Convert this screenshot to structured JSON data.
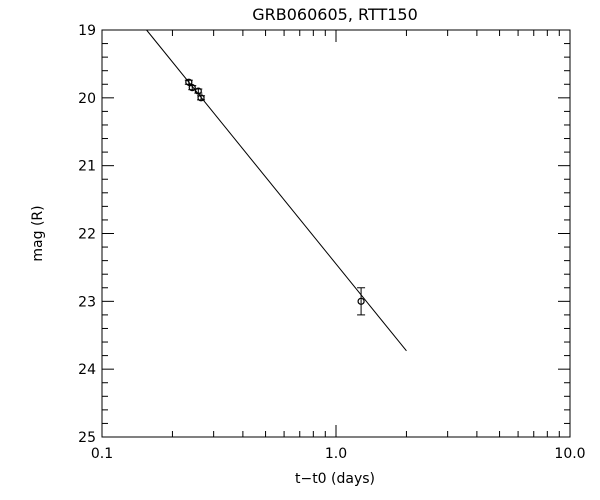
{
  "chart_data": {
    "type": "scatter",
    "title": "GRB060605, RTT150",
    "xlabel": "t−t0 (days)",
    "ylabel": "mag (R)",
    "x_scale": "log",
    "xlim": [
      0.1,
      10.0
    ],
    "ylim": [
      19,
      25
    ],
    "y_inverted": true,
    "grid": false,
    "x_ticks": [
      {
        "value": 0.1,
        "label": "0.1"
      },
      {
        "value": 1.0,
        "label": "1.0"
      },
      {
        "value": 10.0,
        "label": "10.0"
      }
    ],
    "y_ticks": [
      {
        "value": 19,
        "label": "19"
      },
      {
        "value": 20,
        "label": "20"
      },
      {
        "value": 21,
        "label": "21"
      },
      {
        "value": 22,
        "label": "22"
      },
      {
        "value": 23,
        "label": "23"
      },
      {
        "value": 24,
        "label": "24"
      },
      {
        "value": 25,
        "label": "25"
      }
    ],
    "points": [
      {
        "x": 0.235,
        "y": 19.77,
        "err": 0.03
      },
      {
        "x": 0.243,
        "y": 19.85,
        "err": 0.03
      },
      {
        "x": 0.258,
        "y": 19.9,
        "err": 0.03
      },
      {
        "x": 0.265,
        "y": 20.0,
        "err": 0.03
      },
      {
        "x": 1.28,
        "y": 23.0,
        "err": 0.2
      }
    ],
    "fit_line": {
      "x": [
        0.155,
        2.0
      ],
      "y": [
        19.0,
        23.73
      ]
    },
    "colors": {
      "line": "#000000",
      "marker": "#000000"
    }
  }
}
